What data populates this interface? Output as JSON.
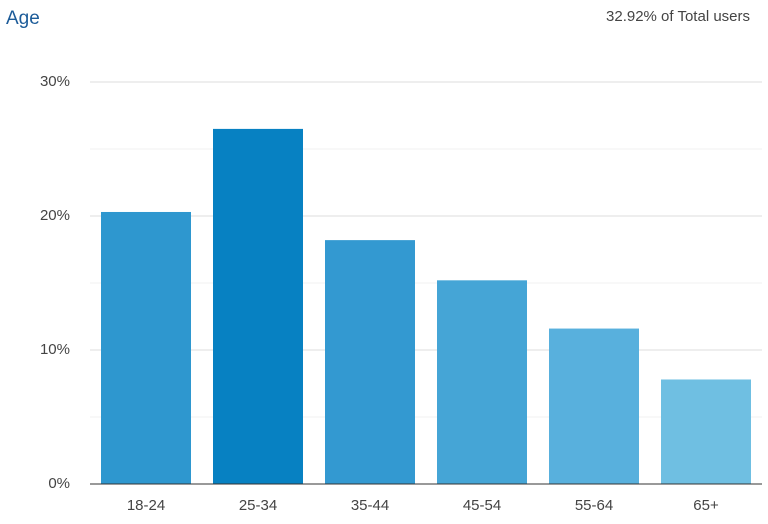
{
  "chart_data": {
    "type": "bar",
    "title": "Age",
    "subtitle": "32.92% of Total users",
    "categories": [
      "18-24",
      "25-34",
      "35-44",
      "45-54",
      "55-64",
      "65+"
    ],
    "values": [
      20.3,
      26.5,
      18.2,
      15.2,
      11.6,
      7.8
    ],
    "colors": [
      "#2e97cf",
      "#0781c2",
      "#3399d1",
      "#45a5d6",
      "#58b0dd",
      "#6fbfe2"
    ],
    "ylim": [
      0,
      30
    ],
    "yticks": [
      {
        "value": 0,
        "label": "0%"
      },
      {
        "value": 10,
        "label": "10%"
      },
      {
        "value": 20,
        "label": "20%"
      },
      {
        "value": 30,
        "label": "30%"
      }
    ],
    "minor_yticks": [
      5,
      15,
      25
    ],
    "grid": true
  }
}
